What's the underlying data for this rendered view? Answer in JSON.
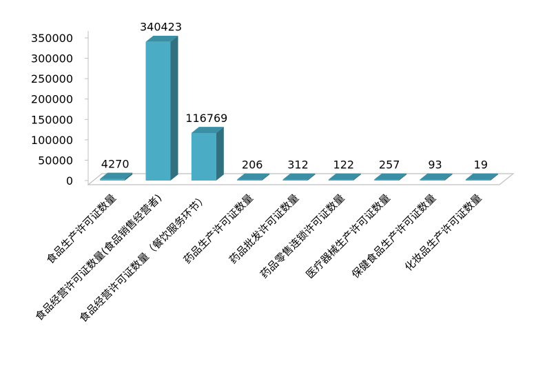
{
  "chart_data": {
    "type": "bar",
    "title": "",
    "xlabel": "",
    "ylabel": "",
    "ylim": [
      0,
      350000
    ],
    "yticks": [
      0,
      50000,
      100000,
      150000,
      200000,
      250000,
      300000,
      350000
    ],
    "grid": false,
    "legend": "none",
    "categories": [
      "食品生产许可证数量",
      "食品经营许可证数量(食品销售经营者)",
      "食品经营许可证数量（餐饮服务环节）",
      "药品生产许可证数量",
      "药品批发许可证数量",
      "药品零售连锁许可证数量",
      "医疗器械生产许可证数量",
      "保健食品生产许可证数量",
      "化妆品生产许可证数量"
    ],
    "values": [
      4270,
      340423,
      116769,
      206,
      312,
      122,
      257,
      93,
      19
    ],
    "data_labels": [
      "4270",
      "340423",
      "116769",
      "206",
      "312",
      "122",
      "257",
      "93",
      "19"
    ],
    "colors": {
      "bar_front": "#4BACC6",
      "bar_side": "#31707F",
      "bar_top": "#3A8FA5",
      "floor": "#FFFFFF",
      "floor_edge": "#BFBFBF"
    }
  }
}
